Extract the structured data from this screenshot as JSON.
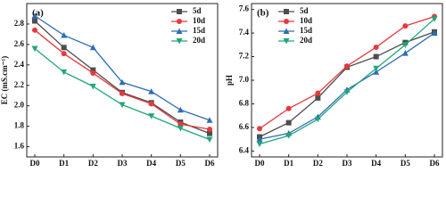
{
  "chart_data": [
    {
      "type": "line",
      "title": "(a)",
      "y_label": "EC (mS.cm⁻¹)",
      "categories": [
        "D0",
        "D1",
        "D2",
        "D3",
        "D4",
        "D5",
        "D6"
      ],
      "ylim": [
        1.5,
        3.0
      ],
      "yticks": [
        1.6,
        1.8,
        {
          "value": 2,
          "label": "2.0"
        },
        2.2,
        2.4,
        2.6,
        2.8
      ],
      "legend": "upper right",
      "series": [
        {
          "name": "5d",
          "color": "#4d4d4d",
          "marker": "square",
          "values": [
            2.83,
            2.57,
            2.35,
            2.13,
            2.03,
            1.84,
            1.73
          ]
        },
        {
          "name": "10d",
          "color": "#e8383d",
          "marker": "circle",
          "values": [
            2.74,
            2.51,
            2.32,
            2.12,
            2.02,
            1.82,
            1.77
          ]
        },
        {
          "name": "15d",
          "color": "#2e6db4",
          "marker": "triangle-up",
          "values": [
            2.88,
            2.69,
            2.57,
            2.23,
            2.14,
            1.96,
            1.86
          ]
        },
        {
          "name": "20d",
          "color": "#1fa77a",
          "marker": "triangle-down",
          "values": [
            2.56,
            2.33,
            2.19,
            2.01,
            1.9,
            1.78,
            1.67
          ]
        }
      ]
    },
    {
      "type": "line",
      "title": "(b)",
      "y_label": "pH",
      "categories": [
        "D0",
        "D1",
        "D2",
        "D3",
        "D4",
        "D5",
        "D6"
      ],
      "ylim": [
        6.35,
        7.65
      ],
      "yticks": [
        6.4,
        6.6,
        6.8,
        {
          "value": 7,
          "label": "7.0"
        },
        7.2,
        7.4,
        7.6
      ],
      "legend": "upper left",
      "series": [
        {
          "name": "5d",
          "color": "#4d4d4d",
          "marker": "square",
          "values": [
            6.52,
            6.64,
            6.85,
            7.11,
            7.2,
            7.32,
            7.41
          ]
        },
        {
          "name": "10d",
          "color": "#e8383d",
          "marker": "circle",
          "values": [
            6.59,
            6.76,
            6.89,
            7.12,
            7.28,
            7.46,
            7.54
          ]
        },
        {
          "name": "15d",
          "color": "#2e6db4",
          "marker": "triangle-up",
          "values": [
            6.5,
            6.55,
            6.69,
            6.92,
            7.07,
            7.23,
            7.4
          ]
        },
        {
          "name": "20d",
          "color": "#1fa77a",
          "marker": "triangle-down",
          "values": [
            6.46,
            6.53,
            6.67,
            6.9,
            7.1,
            7.3,
            7.52
          ]
        }
      ]
    }
  ]
}
